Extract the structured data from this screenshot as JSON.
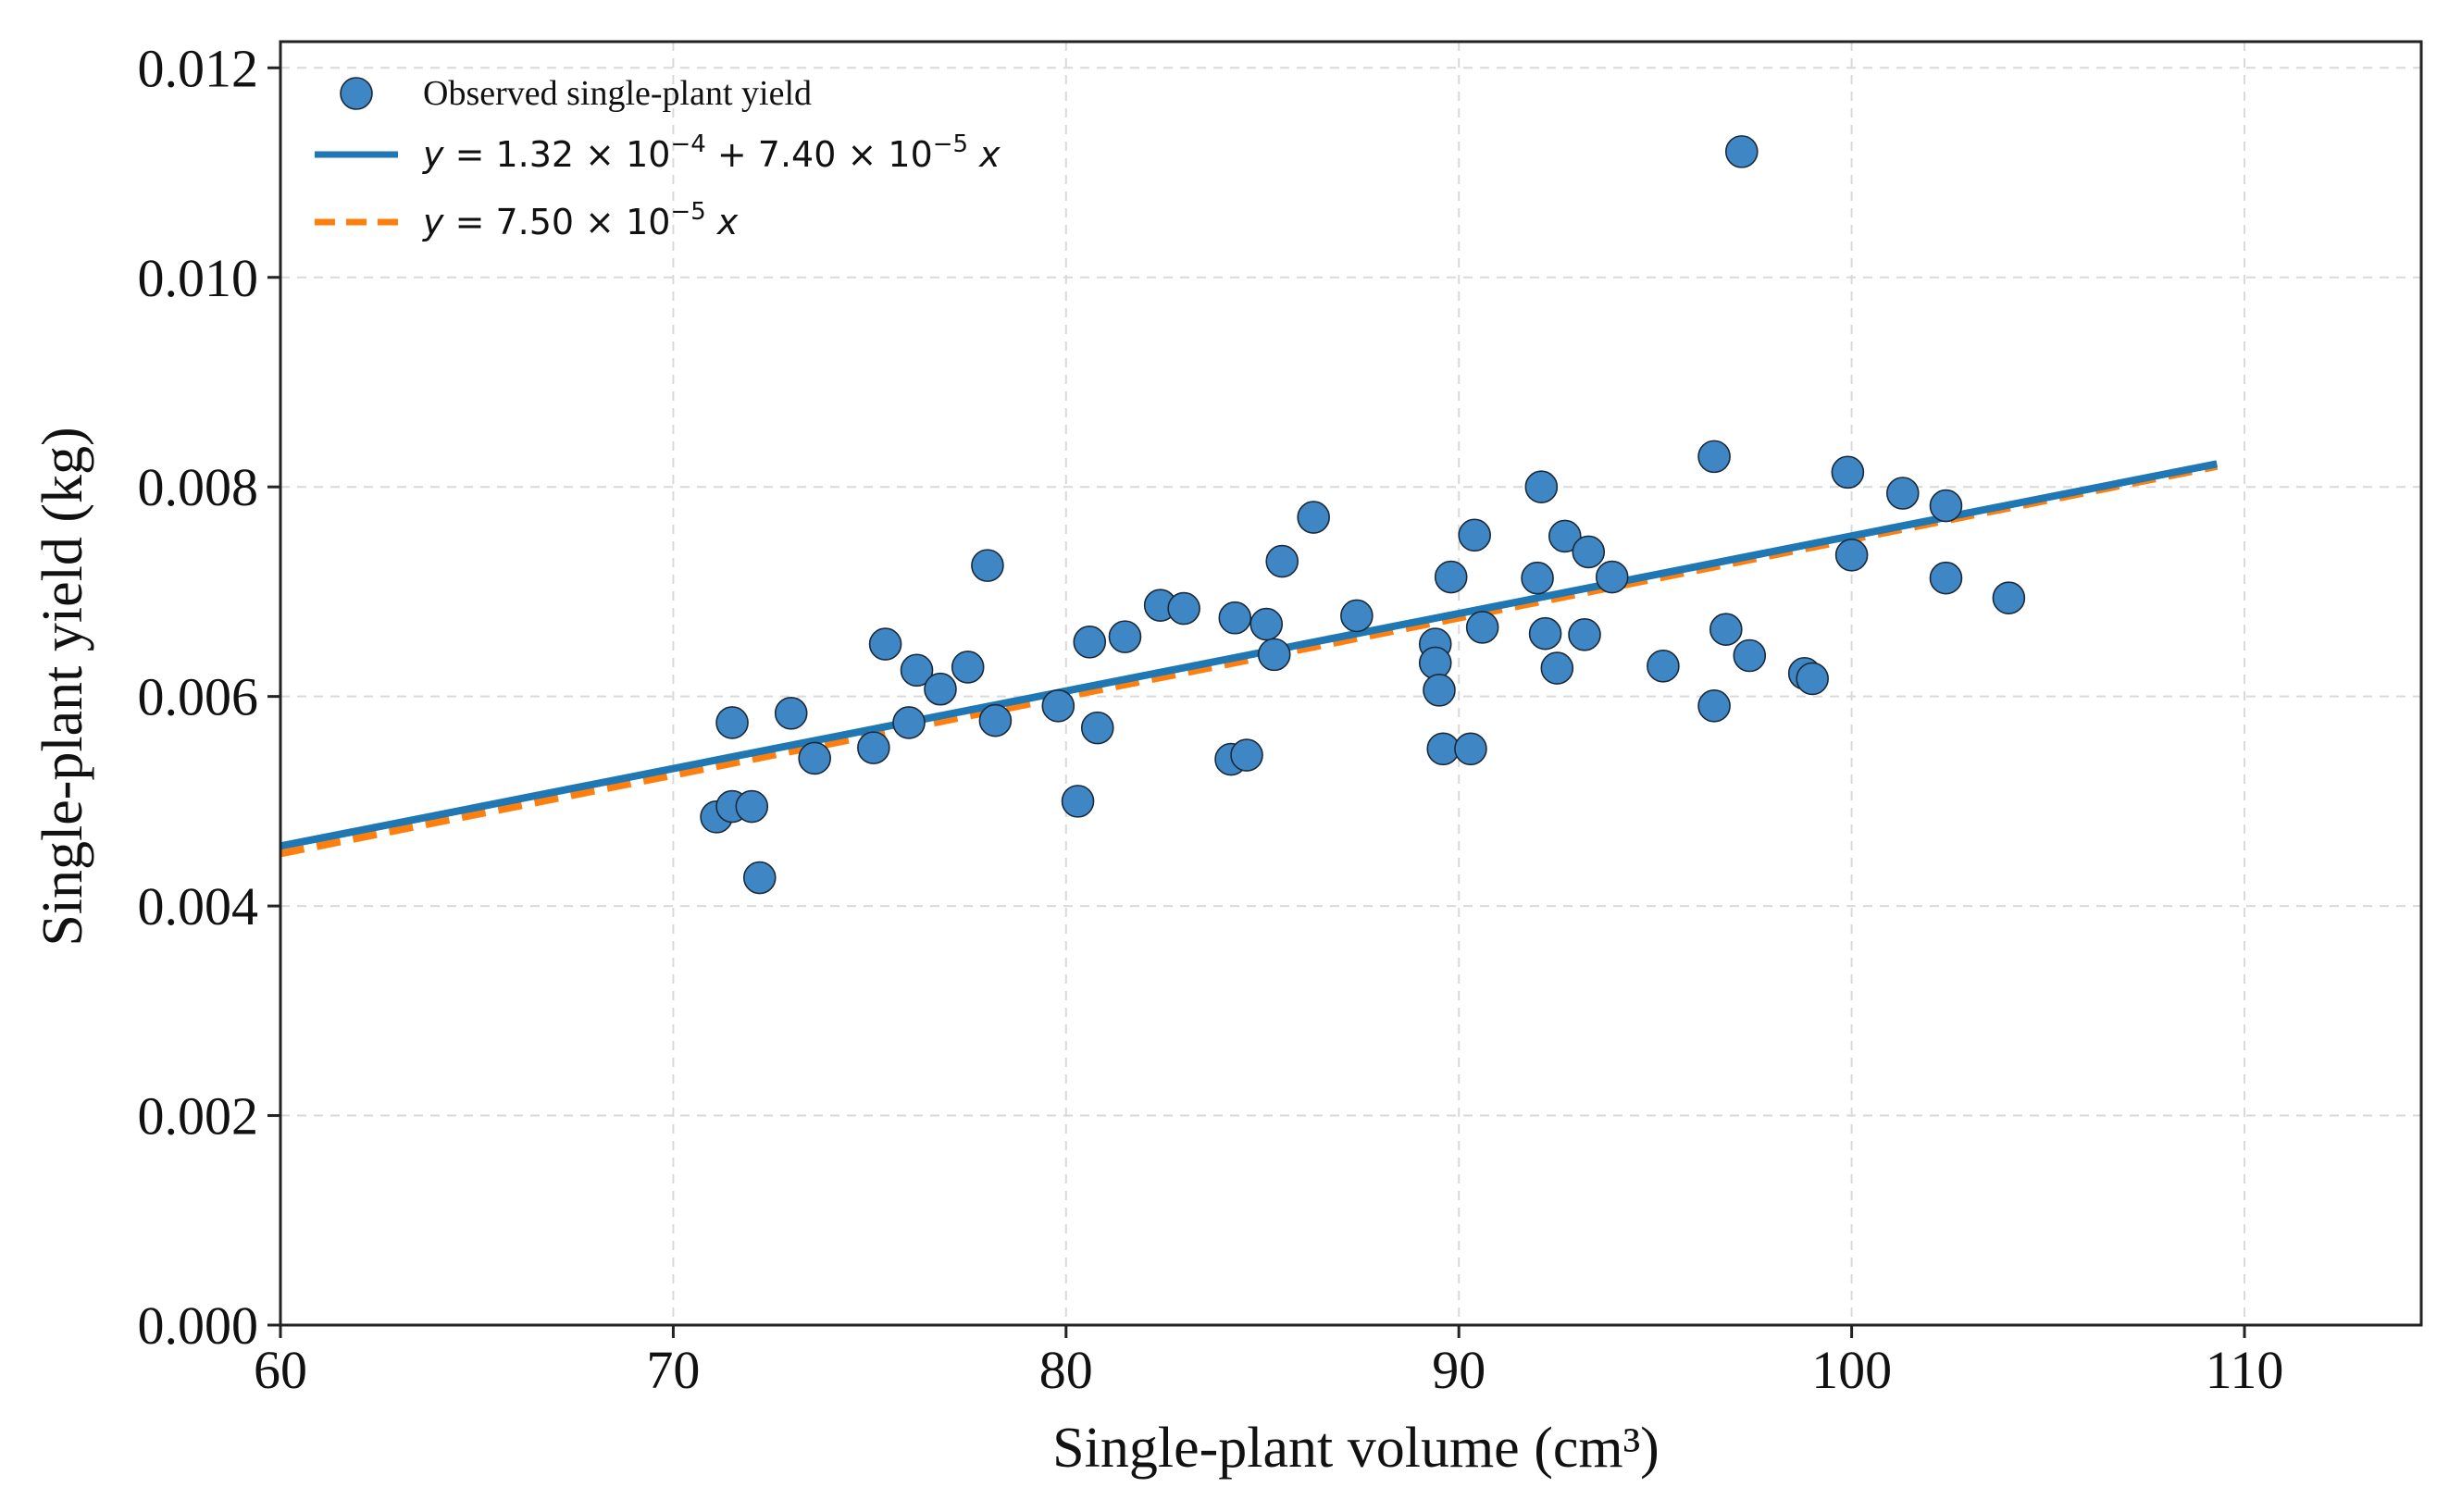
{
  "chart_data": {
    "type": "scatter",
    "xlabel": "Single-plant volume (cm³)",
    "ylabel": "Single-plant yield (kg)",
    "xlim": [
      60,
      114.5
    ],
    "ylim": [
      0,
      0.01225
    ],
    "x_ticks": [
      60,
      70,
      80,
      90,
      100,
      110
    ],
    "x_tick_labels": [
      "60",
      "70",
      "80",
      "90",
      "100",
      "110"
    ],
    "y_ticks": [
      0,
      0.002,
      0.004,
      0.006,
      0.008,
      0.01,
      0.012
    ],
    "y_tick_labels": [
      "0.000",
      "0.002",
      "0.004",
      "0.006",
      "0.008",
      "0.010",
      "0.012"
    ],
    "grid": true,
    "legend_position": "top-left",
    "colors": {
      "points": "#3f86c4",
      "point_edge": "#1a2a3a",
      "fit_line": "#1f77b4",
      "origin_line": "#ff7f0e",
      "grid": "#d9d9d9",
      "axis": "#222222"
    },
    "series": [
      {
        "name": "Observed single-plant yield",
        "kind": "scatter",
        "points": [
          [
            71.1,
            0.00485
          ],
          [
            71.5,
            0.00495
          ],
          [
            71.5,
            0.00575
          ],
          [
            72.0,
            0.00495
          ],
          [
            72.2,
            0.00427
          ],
          [
            73.0,
            0.00584
          ],
          [
            73.6,
            0.00541
          ],
          [
            75.1,
            0.00551
          ],
          [
            75.4,
            0.0065
          ],
          [
            76.0,
            0.00575
          ],
          [
            76.2,
            0.00625
          ],
          [
            76.8,
            0.00607
          ],
          [
            77.5,
            0.00628
          ],
          [
            78.0,
            0.00725
          ],
          [
            78.2,
            0.00577
          ],
          [
            79.8,
            0.00591
          ],
          [
            80.3,
            0.005
          ],
          [
            80.6,
            0.00652
          ],
          [
            80.8,
            0.0057
          ],
          [
            81.5,
            0.00657
          ],
          [
            82.4,
            0.00687
          ],
          [
            83.0,
            0.00684
          ],
          [
            84.2,
            0.0054
          ],
          [
            84.3,
            0.00675
          ],
          [
            84.6,
            0.00544
          ],
          [
            85.1,
            0.00669
          ],
          [
            85.3,
            0.0064
          ],
          [
            85.5,
            0.00729
          ],
          [
            86.3,
            0.00771
          ],
          [
            87.4,
            0.00677
          ],
          [
            89.4,
            0.0065
          ],
          [
            89.4,
            0.00632
          ],
          [
            89.5,
            0.00606
          ],
          [
            89.6,
            0.0055
          ],
          [
            89.8,
            0.00714
          ],
          [
            90.3,
            0.0055
          ],
          [
            90.4,
            0.00754
          ],
          [
            90.6,
            0.00666
          ],
          [
            92.0,
            0.00713
          ],
          [
            92.1,
            0.008
          ],
          [
            92.2,
            0.0066
          ],
          [
            92.5,
            0.00627
          ],
          [
            92.7,
            0.00753
          ],
          [
            93.2,
            0.00659
          ],
          [
            93.3,
            0.00738
          ],
          [
            93.9,
            0.00714
          ],
          [
            95.2,
            0.00629
          ],
          [
            96.5,
            0.00829
          ],
          [
            96.5,
            0.00591
          ],
          [
            96.8,
            0.00664
          ],
          [
            97.2,
            0.0112
          ],
          [
            97.4,
            0.00639
          ],
          [
            98.8,
            0.00622
          ],
          [
            99.0,
            0.00617
          ],
          [
            99.9,
            0.00814
          ],
          [
            100.0,
            0.00735
          ],
          [
            101.3,
            0.00794
          ],
          [
            102.4,
            0.00782
          ],
          [
            102.4,
            0.00713
          ],
          [
            104.0,
            0.00694
          ]
        ]
      },
      {
        "name_parts": [
          "y",
          " = 1.32 × 10",
          "−4",
          " + 7.40 × 10",
          "−5",
          " x"
        ],
        "kind": "line",
        "style": "solid",
        "intercept": 0.000132,
        "slope": 7.4e-05,
        "x_range": [
          60,
          109.3
        ]
      },
      {
        "name_parts": [
          "y",
          " = 7.50 × 10",
          "−5",
          " x"
        ],
        "kind": "line",
        "style": "dashed",
        "intercept": 0,
        "slope": 7.5e-05,
        "x_range": [
          60,
          109.3
        ]
      }
    ]
  }
}
